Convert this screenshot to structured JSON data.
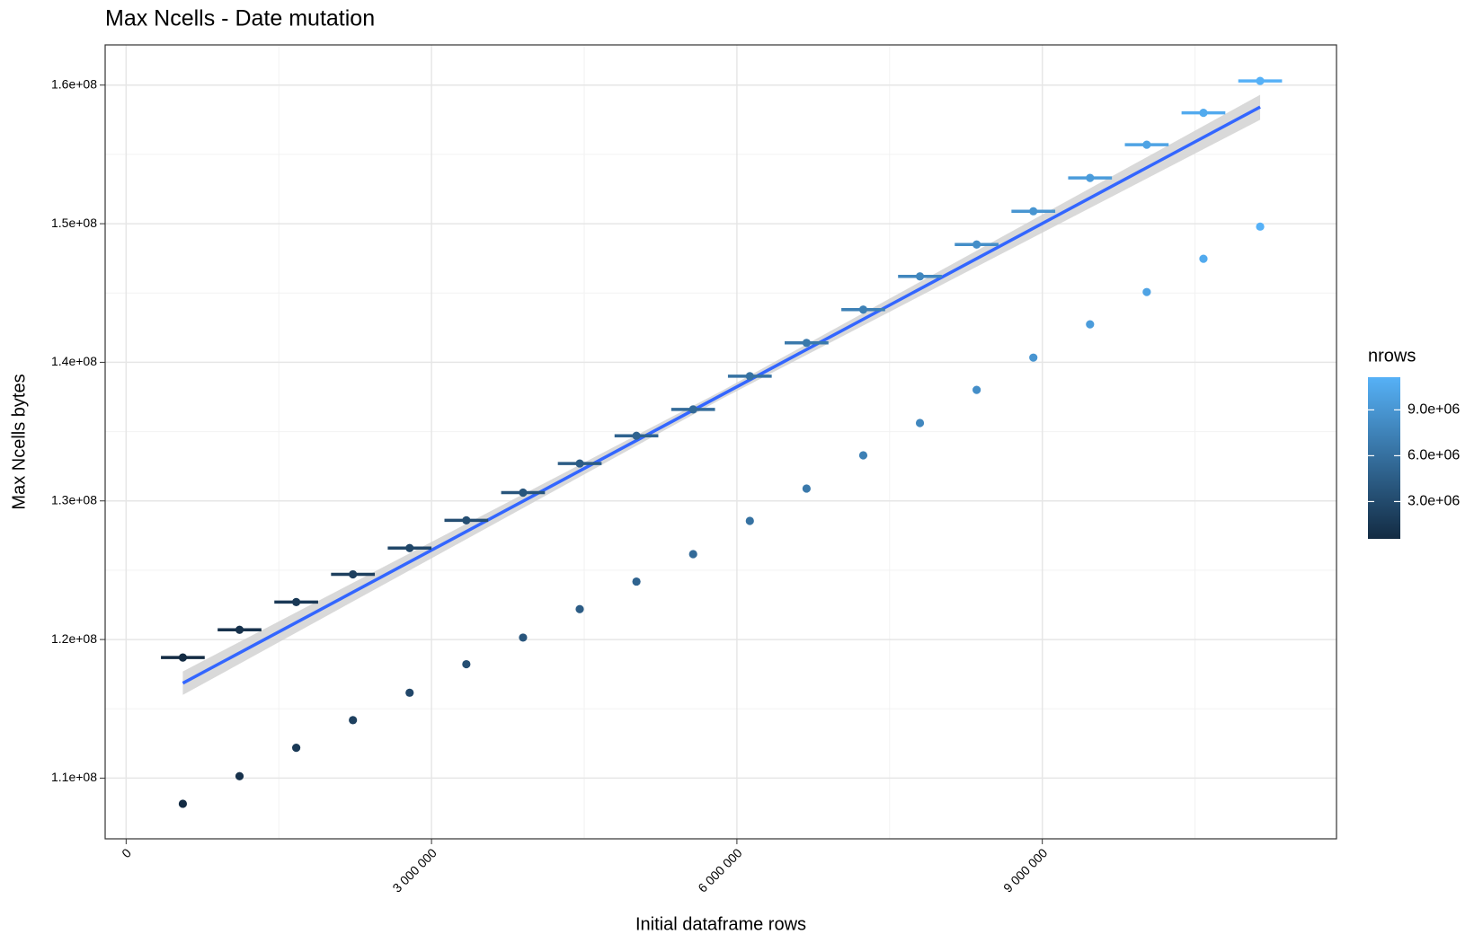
{
  "chart_data": {
    "type": "scatter",
    "title": "Max Ncells - Date mutation",
    "x_label": "Initial dataframe rows",
    "y_label": "Max Ncells bytes",
    "xlim": [
      -206000,
      11890000
    ],
    "ylim": [
      105620000,
      162900000
    ],
    "xticks": [
      0,
      {
        "value": 3000000,
        "label": "3 000 000"
      },
      {
        "value": 6000000,
        "label": "6 000 000"
      },
      {
        "value": 9000000,
        "label": "9 000 000"
      }
    ],
    "yticks": [
      {
        "value": 110000000,
        "label": "1.1e+08"
      },
      {
        "value": 120000000,
        "label": "1.2e+08"
      },
      {
        "value": 130000000,
        "label": "1.3e+08"
      },
      {
        "value": 140000000,
        "label": "1.4e+08"
      },
      {
        "value": 150000000,
        "label": "1.5e+08"
      },
      {
        "value": 160000000,
        "label": "1.6e+08"
      }
    ],
    "x_minor_ticks": [
      1500000,
      4500000,
      7500000,
      10500000
    ],
    "y_minor_ticks": [
      105000000,
      115000000,
      125000000,
      135000000,
      145000000,
      155000000
    ],
    "grid": true,
    "x": [
      557000,
      1114000,
      1671000,
      2228000,
      2785000,
      3342000,
      3899000,
      4456000,
      5013000,
      5570000,
      6127000,
      6684000,
      7241000,
      7798000,
      8355000,
      8912000,
      9469000,
      10026000,
      10583000,
      11140000
    ],
    "series": [
      {
        "values": [
          118700000,
          120700000,
          122700000,
          124700000,
          126600000,
          128600000,
          130600000,
          132700000,
          134700000,
          136600000,
          139000000,
          141400000,
          143800000,
          146200000,
          148500000,
          150900000,
          153300000,
          155700000,
          158000000,
          160300000
        ],
        "xerr": 215000
      },
      {
        "values": [
          108150000,
          110140000,
          112190000,
          114180000,
          116160000,
          118220000,
          120140000,
          122190000,
          124180000,
          126160000,
          128560000,
          130890000,
          133290000,
          135620000,
          138010000,
          140340000,
          142740000,
          145070000,
          147470000,
          149790000
        ]
      }
    ],
    "fit": {
      "color": "#3366FF",
      "band_color": "#cfcfcf",
      "x": [
        557000,
        5848500,
        11140000
      ],
      "y": [
        116850000,
        137640000,
        158420000
      ],
      "lo": [
        116000000,
        137350000,
        157500000
      ],
      "hi": [
        117700000,
        137930000,
        159300000
      ]
    },
    "color_scale": {
      "title": "nrows",
      "low": "#132B43",
      "high": "#56B1F7",
      "lim": [
        557000,
        11140000
      ],
      "ticks": [
        {
          "value": 3000000,
          "label": "3.0e+06"
        },
        {
          "value": 6000000,
          "label": "6.0e+06"
        },
        {
          "value": 9000000,
          "label": "9.0e+06"
        }
      ]
    }
  }
}
